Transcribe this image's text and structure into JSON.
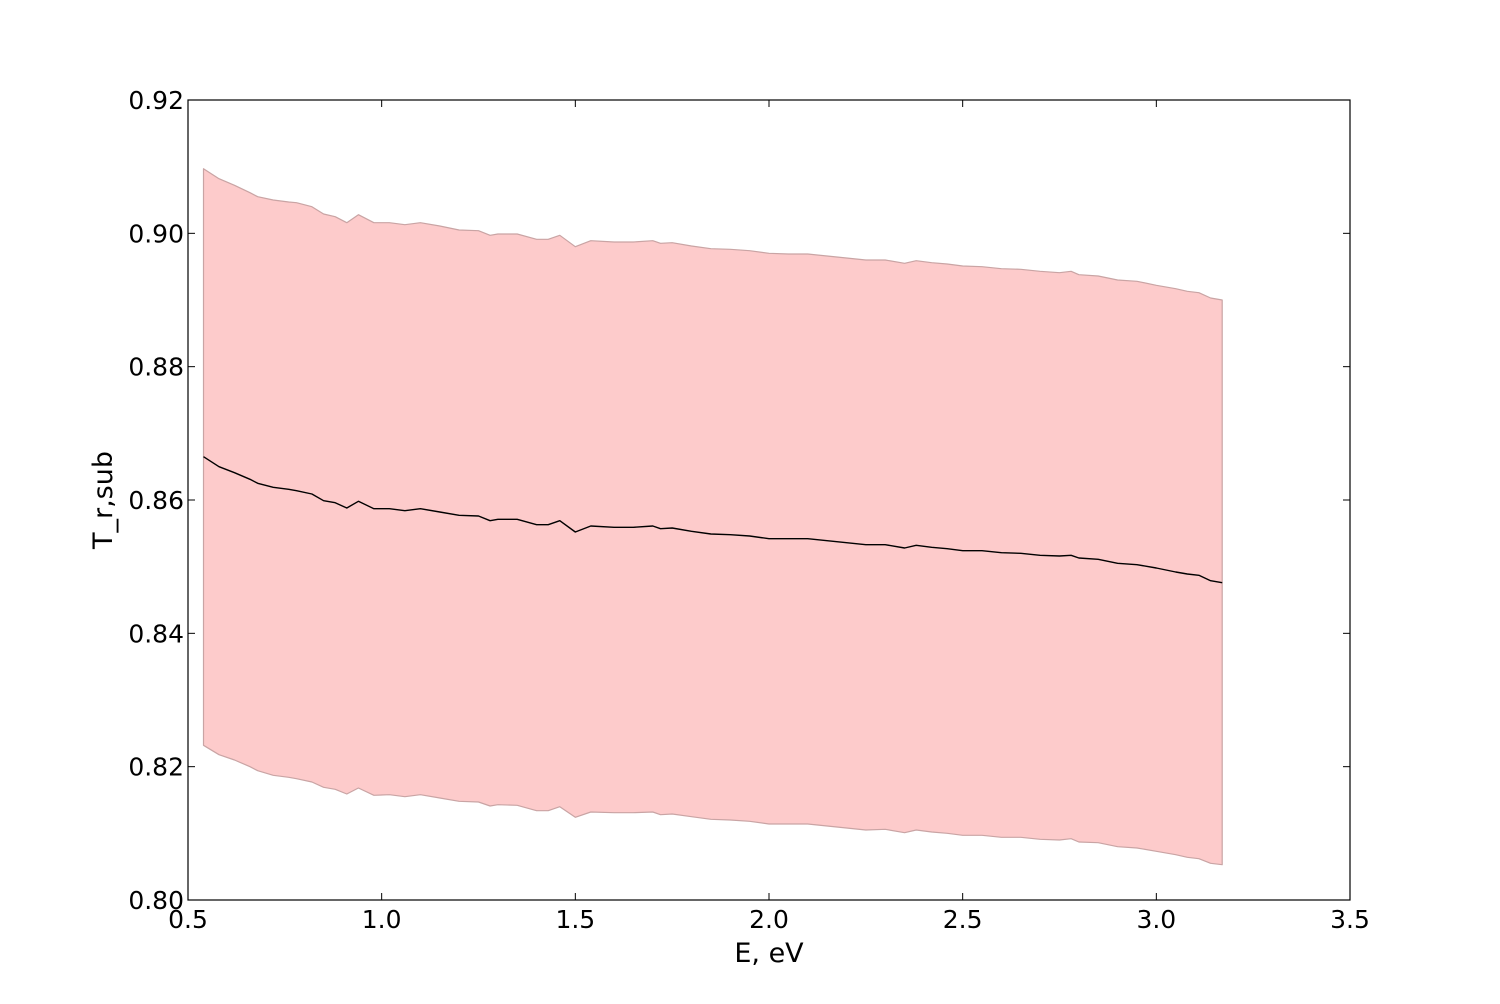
{
  "chart_data": {
    "type": "area",
    "title": "",
    "xlabel": "E, eV",
    "ylabel": "T_r,sub",
    "xlim": [
      0.5,
      3.5
    ],
    "ylim": [
      0.8,
      0.92
    ],
    "xticks": [
      0.5,
      1.0,
      1.5,
      2.0,
      2.5,
      3.0,
      3.5
    ],
    "xtick_labels": [
      "0.5",
      "1.0",
      "1.5",
      "2.0",
      "2.5",
      "3.0",
      "3.5"
    ],
    "yticks": [
      0.8,
      0.82,
      0.84,
      0.86,
      0.88,
      0.9,
      0.92
    ],
    "ytick_labels": [
      "0.80",
      "0.82",
      "0.84",
      "0.86",
      "0.88",
      "0.90",
      "0.92"
    ],
    "grid": false,
    "colors": {
      "band_fill": "#fdcbcb",
      "band_edge": "#c9a4a4",
      "line": "#000000",
      "axes": "#000000"
    },
    "series": [
      {
        "kind": "band",
        "x": [
          0.54,
          0.58,
          0.62,
          0.66,
          0.68,
          0.72,
          0.76,
          0.78,
          0.82,
          0.85,
          0.88,
          0.91,
          0.94,
          0.98,
          1.02,
          1.06,
          1.1,
          1.15,
          1.2,
          1.25,
          1.28,
          1.3,
          1.35,
          1.4,
          1.43,
          1.46,
          1.5,
          1.54,
          1.6,
          1.65,
          1.7,
          1.72,
          1.75,
          1.8,
          1.85,
          1.9,
          1.95,
          2.0,
          2.05,
          2.1,
          2.15,
          2.2,
          2.25,
          2.3,
          2.35,
          2.38,
          2.42,
          2.46,
          2.5,
          2.55,
          2.6,
          2.65,
          2.7,
          2.75,
          2.78,
          2.8,
          2.85,
          2.9,
          2.95,
          3.0,
          3.05,
          3.08,
          3.11,
          3.14,
          3.17
        ],
        "upper": [
          0.9097,
          0.9082,
          0.9072,
          0.9061,
          0.9055,
          0.905,
          0.9047,
          0.9046,
          0.904,
          0.9029,
          0.9025,
          0.9016,
          0.9028,
          0.9016,
          0.9016,
          0.9013,
          0.9016,
          0.9011,
          0.9005,
          0.9004,
          0.8997,
          0.8999,
          0.8999,
          0.8991,
          0.8991,
          0.8997,
          0.898,
          0.8989,
          0.8987,
          0.8987,
          0.8989,
          0.8985,
          0.8986,
          0.8981,
          0.8977,
          0.8976,
          0.8974,
          0.897,
          0.8969,
          0.8969,
          0.8966,
          0.8963,
          0.896,
          0.896,
          0.8955,
          0.8959,
          0.8956,
          0.8954,
          0.8951,
          0.895,
          0.8947,
          0.8946,
          0.8943,
          0.8941,
          0.8943,
          0.8938,
          0.8936,
          0.893,
          0.8928,
          0.8922,
          0.8917,
          0.8913,
          0.8911,
          0.8903,
          0.89
        ],
        "lower": [
          0.8232,
          0.8218,
          0.821,
          0.82,
          0.8194,
          0.8187,
          0.8184,
          0.8182,
          0.8177,
          0.8169,
          0.8166,
          0.8159,
          0.8168,
          0.8157,
          0.8158,
          0.8155,
          0.8158,
          0.8153,
          0.8148,
          0.8147,
          0.8141,
          0.8143,
          0.8142,
          0.8134,
          0.8134,
          0.814,
          0.8124,
          0.8132,
          0.8131,
          0.8131,
          0.8132,
          0.8128,
          0.8129,
          0.8125,
          0.8121,
          0.812,
          0.8118,
          0.8114,
          0.8114,
          0.8114,
          0.8111,
          0.8108,
          0.8105,
          0.8106,
          0.8101,
          0.8105,
          0.8102,
          0.81,
          0.8097,
          0.8097,
          0.8094,
          0.8094,
          0.8091,
          0.809,
          0.8092,
          0.8087,
          0.8086,
          0.808,
          0.8078,
          0.8073,
          0.8068,
          0.8064,
          0.8062,
          0.8055,
          0.8053
        ]
      },
      {
        "kind": "line",
        "x": [
          0.54,
          0.58,
          0.62,
          0.66,
          0.68,
          0.72,
          0.76,
          0.78,
          0.82,
          0.85,
          0.88,
          0.91,
          0.94,
          0.98,
          1.02,
          1.06,
          1.1,
          1.15,
          1.2,
          1.25,
          1.28,
          1.3,
          1.35,
          1.4,
          1.43,
          1.46,
          1.5,
          1.54,
          1.6,
          1.65,
          1.7,
          1.72,
          1.75,
          1.8,
          1.85,
          1.9,
          1.95,
          2.0,
          2.05,
          2.1,
          2.15,
          2.2,
          2.25,
          2.3,
          2.35,
          2.38,
          2.42,
          2.46,
          2.5,
          2.55,
          2.6,
          2.65,
          2.7,
          2.75,
          2.78,
          2.8,
          2.85,
          2.9,
          2.95,
          3.0,
          3.05,
          3.08,
          3.11,
          3.14,
          3.17
        ],
        "y": [
          0.8665,
          0.865,
          0.8641,
          0.8631,
          0.8625,
          0.8619,
          0.8616,
          0.8614,
          0.8609,
          0.8599,
          0.8596,
          0.8588,
          0.8598,
          0.8587,
          0.8587,
          0.8584,
          0.8587,
          0.8582,
          0.8577,
          0.8576,
          0.8569,
          0.8571,
          0.8571,
          0.8563,
          0.8563,
          0.8569,
          0.8552,
          0.8561,
          0.8559,
          0.8559,
          0.8561,
          0.8557,
          0.8558,
          0.8553,
          0.8549,
          0.8548,
          0.8546,
          0.8542,
          0.8542,
          0.8542,
          0.8539,
          0.8536,
          0.8533,
          0.8533,
          0.8528,
          0.8532,
          0.8529,
          0.8527,
          0.8524,
          0.8524,
          0.8521,
          0.852,
          0.8517,
          0.8516,
          0.8517,
          0.8513,
          0.8511,
          0.8505,
          0.8503,
          0.8498,
          0.8492,
          0.8489,
          0.8487,
          0.8479,
          0.8476
        ]
      }
    ]
  }
}
